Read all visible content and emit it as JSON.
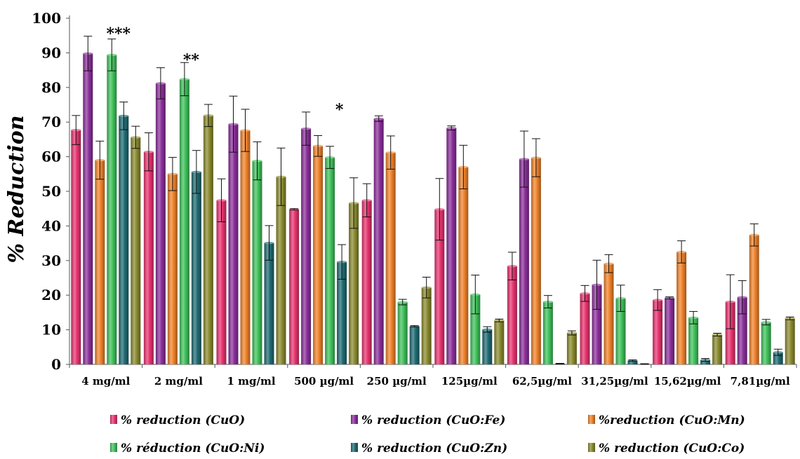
{
  "chart_data": {
    "type": "bar",
    "xlabel": "",
    "ylabel": "% Reduction",
    "ylim": [
      0,
      100
    ],
    "yticks": [
      0,
      10,
      20,
      30,
      40,
      50,
      60,
      70,
      80,
      90,
      100
    ],
    "grid": false,
    "legend_position": "bottom",
    "categories": [
      "4 mg/ml",
      "2 mg/ml",
      "1 mg/ml",
      "500 µg/ml",
      "250 µg/ml",
      "125µg/ml",
      "62,5µg/ml",
      "31,25µg/ml",
      "15,62µg/ml",
      "7,81µg/ml"
    ],
    "series": [
      {
        "name": "% reduction (CuO)",
        "color": "#e8336f",
        "values": [
          67.7,
          61.4,
          47.4,
          44.8,
          47.4,
          44.8,
          28.4,
          20.5,
          18.6,
          18.1
        ],
        "errors": [
          4.2,
          5.5,
          6.2,
          0.2,
          4.8,
          8.9,
          4.0,
          2.3,
          3.0,
          7.8
        ]
      },
      {
        "name": "% reduction (CuO:Fe)",
        "color": "#8b2f9b",
        "values": [
          89.8,
          81.2,
          69.4,
          68.1,
          71.0,
          68.3,
          59.3,
          23.0,
          19.2,
          19.4
        ],
        "errors": [
          5.0,
          4.5,
          8.1,
          4.8,
          0.8,
          0.6,
          8.1,
          7.1,
          0.3,
          4.8
        ]
      },
      {
        "name": "%reduction (CuO:Mn)",
        "color": "#f0822a",
        "values": [
          59.0,
          55.0,
          67.6,
          63.1,
          61.2,
          57.0,
          59.7,
          29.1,
          32.5,
          37.4
        ],
        "errors": [
          5.5,
          4.8,
          6.1,
          3.0,
          4.8,
          6.3,
          5.5,
          2.6,
          3.2,
          3.2
        ]
      },
      {
        "name": "% réduction (CuO:Ni)",
        "color": "#3fc25a",
        "values": [
          89.4,
          82.4,
          58.8,
          59.8,
          18.0,
          20.2,
          18.1,
          19.1,
          13.5,
          12.2
        ],
        "errors": [
          4.6,
          4.8,
          5.5,
          3.2,
          0.8,
          5.6,
          1.8,
          3.8,
          1.8,
          0.8
        ]
      },
      {
        "name": "% reduction (CuO:Zn)",
        "color": "#1f6b73",
        "values": [
          71.8,
          55.6,
          35.1,
          29.6,
          11.0,
          10.1,
          0.2,
          1.1,
          1.3,
          3.5
        ],
        "errors": [
          4.0,
          6.2,
          5.0,
          5.0,
          0.2,
          0.8,
          0.1,
          0.2,
          0.4,
          0.9
        ]
      },
      {
        "name": "% reduction (CuO:Co)",
        "color": "#8a8a2e",
        "values": [
          65.6,
          71.9,
          54.2,
          46.6,
          22.2,
          12.7,
          9.1,
          0.1,
          8.6,
          13.3
        ],
        "errors": [
          3.2,
          3.2,
          8.3,
          7.3,
          3.0,
          0.4,
          0.6,
          0.1,
          0.4,
          0.4
        ]
      }
    ],
    "annotations": [
      {
        "text": "***",
        "category_index": 0
      },
      {
        "text": "**",
        "category_index": 1
      },
      {
        "text": "*",
        "category_index": 3
      }
    ]
  }
}
